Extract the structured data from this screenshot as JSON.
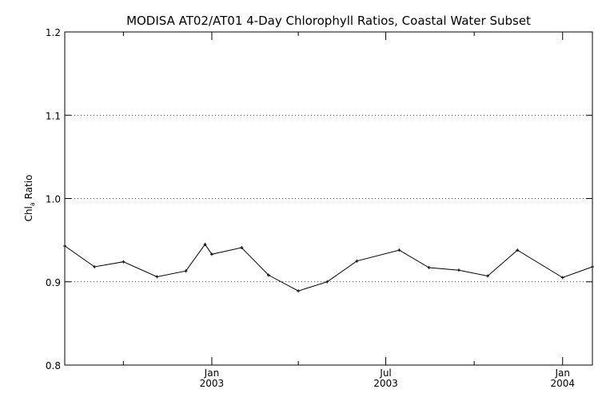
{
  "chart_data": {
    "type": "line",
    "title": "MODISA AT02/AT01 4-Day Chlorophyll Ratios, Coastal Water Subset",
    "xlabel": "",
    "ylabel_main": "Chl",
    "ylabel_sub": "a",
    "ylabel_rest": " Ratio",
    "ylim": [
      0.8,
      1.2
    ],
    "y_ticks": [
      "0.8",
      "0.9",
      "1.0",
      "1.1",
      "1.2"
    ],
    "y_grid": [
      0.9,
      1.0,
      1.1
    ],
    "grid": "horizontal dotted",
    "xlim": [
      "2002-08-01",
      "2004-02-01"
    ],
    "x_major_ticks": [
      {
        "date": "2003-01-01",
        "line1": "Jan",
        "line2": "2003"
      },
      {
        "date": "2003-07-01",
        "line1": "Jul",
        "line2": "2003"
      },
      {
        "date": "2004-01-01",
        "line1": "Jan",
        "line2": "2004"
      }
    ],
    "x_minor_ticks": [
      "2002-10-01",
      "2003-04-01",
      "2003-10-01"
    ],
    "series": [
      {
        "x": [
          "2002-08-01",
          "2002-09-01",
          "2002-10-01",
          "2002-11-05",
          "2002-12-05",
          "2002-12-25",
          "2003-01-01",
          "2003-02-01",
          "2003-03-01",
          "2003-04-01",
          "2003-05-01",
          "2003-06-01",
          "2003-07-15",
          "2003-08-15",
          "2003-09-15",
          "2003-10-15",
          "2003-11-15",
          "2004-01-01",
          "2004-02-01"
        ],
        "y": [
          0.943,
          0.918,
          0.924,
          0.906,
          0.913,
          0.945,
          0.933,
          0.941,
          0.908,
          0.889,
          0.9,
          0.925,
          0.938,
          0.917,
          0.914,
          0.907,
          0.938,
          0.905,
          0.918
        ],
        "color": "#000000"
      }
    ]
  }
}
